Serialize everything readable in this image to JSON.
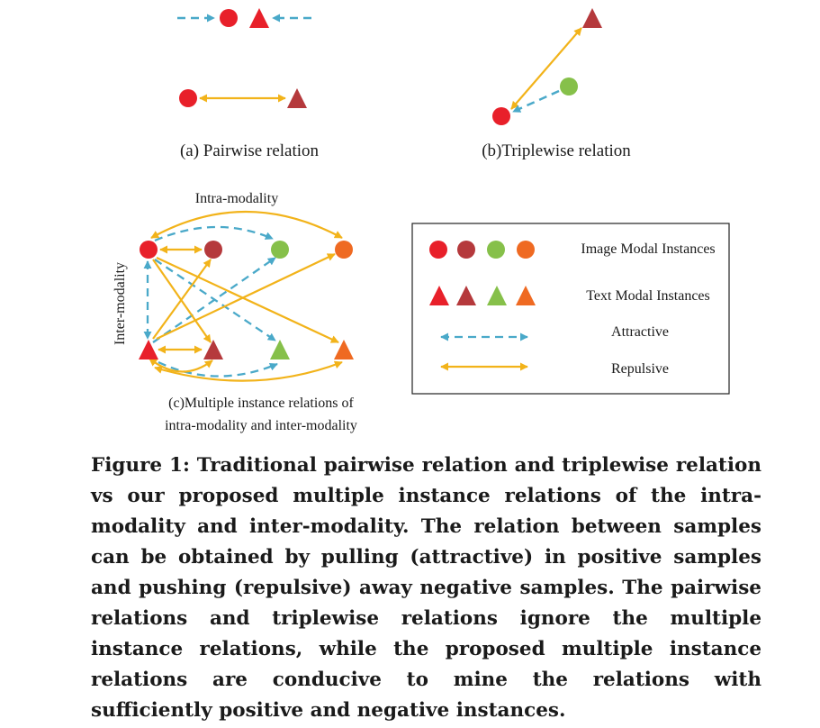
{
  "panel_a": {
    "caption": "(a) Pairwise relation"
  },
  "panel_b": {
    "caption": "(b)Triplewise relation"
  },
  "panel_c": {
    "top_label": "Intra-modality",
    "side_label": "Inter-modality",
    "caption_line1": "(c)Multiple instance relations of",
    "caption_line2": "intra-modality and inter-modality"
  },
  "legend": {
    "image_label": "Image Modal Instances",
    "text_label": "Text Modal Instances",
    "attractive_label": "Attractive",
    "repulsive_label": "Repulsive"
  },
  "colors": {
    "red": "#e8202a",
    "dark_red": "#b5393c",
    "green": "#86c04a",
    "orange": "#ef6a22",
    "attractive": "#4aa9c9",
    "repulsive": "#f2b31a"
  },
  "caption": "Figure 1: Traditional pairwise relation and triplewise relation vs our proposed multiple instance relations of the intra-modality and inter-modality. The relation between samples can be obtained by pulling (attractive) in positive samples and pushing (repulsive) away negative samples. The pairwise relations and triplewise relations ignore the multiple instance relations, while the proposed multiple instance relations are conducive to mine the relations with sufficiently positive and negative instances."
}
